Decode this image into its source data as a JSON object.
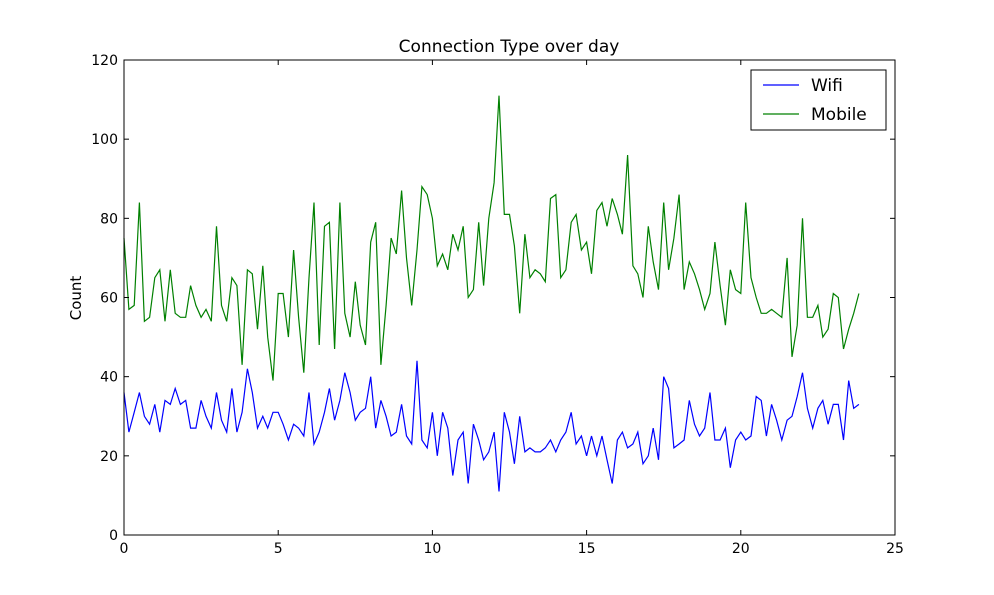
{
  "chart_data": {
    "type": "line",
    "title": "Connection Type over day",
    "xlabel": "",
    "ylabel": "Count",
    "xlim": [
      0,
      25
    ],
    "ylim": [
      0,
      120
    ],
    "xticks": [
      0,
      5,
      10,
      15,
      20,
      25
    ],
    "yticks": [
      0,
      20,
      40,
      60,
      80,
      100,
      120
    ],
    "grid": false,
    "legend_position": "top-right",
    "x": [
      0.0,
      0.16,
      0.33,
      0.5,
      0.66,
      0.83,
      1.0,
      1.16,
      1.33,
      1.5,
      1.66,
      1.83,
      2.0,
      2.16,
      2.33,
      2.5,
      2.66,
      2.83,
      3.0,
      3.16,
      3.33,
      3.5,
      3.66,
      3.83,
      4.0,
      4.16,
      4.33,
      4.5,
      4.66,
      4.83,
      5.0,
      5.16,
      5.33,
      5.5,
      5.66,
      5.83,
      6.0,
      6.16,
      6.33,
      6.5,
      6.66,
      6.83,
      7.0,
      7.16,
      7.33,
      7.5,
      7.66,
      7.83,
      8.0,
      8.16,
      8.33,
      8.5,
      8.66,
      8.83,
      9.0,
      9.16,
      9.33,
      9.5,
      9.66,
      9.83,
      10.0,
      10.16,
      10.33,
      10.5,
      10.66,
      10.83,
      11.0,
      11.16,
      11.33,
      11.5,
      11.66,
      11.83,
      12.0,
      12.16,
      12.33,
      12.5,
      12.66,
      12.83,
      13.0,
      13.16,
      13.33,
      13.5,
      13.66,
      13.83,
      14.0,
      14.16,
      14.33,
      14.5,
      14.66,
      14.83,
      15.0,
      15.16,
      15.33,
      15.5,
      15.66,
      15.83,
      16.0,
      16.16,
      16.33,
      16.5,
      16.66,
      16.83,
      17.0,
      17.16,
      17.33,
      17.5,
      17.66,
      17.83,
      18.0,
      18.16,
      18.33,
      18.5,
      18.66,
      18.83,
      19.0,
      19.16,
      19.33,
      19.5,
      19.66,
      19.83,
      20.0,
      20.16,
      20.33,
      20.5,
      20.66,
      20.83,
      21.0,
      21.16,
      21.33,
      21.5,
      21.66,
      21.83,
      22.0,
      22.16,
      22.33,
      22.5,
      22.66,
      22.83,
      23.0,
      23.16,
      23.33,
      23.5,
      23.66,
      23.83
    ],
    "series": [
      {
        "name": "Wifi",
        "color": "#0000ff",
        "values": [
          36,
          26,
          31,
          36,
          30,
          28,
          33,
          26,
          34,
          33,
          37,
          33,
          34,
          27,
          27,
          34,
          30,
          27,
          36,
          29,
          26,
          37,
          26,
          31,
          42,
          36,
          27,
          30,
          27,
          31,
          31,
          28,
          24,
          28,
          27,
          25,
          36,
          23,
          26,
          31,
          37,
          29,
          34,
          41,
          36,
          29,
          31,
          32,
          40,
          27,
          34,
          30,
          25,
          26,
          33,
          25,
          23,
          44,
          24,
          22,
          31,
          20,
          31,
          27,
          15,
          24,
          26,
          13,
          28,
          24,
          19,
          21,
          26,
          11,
          31,
          26,
          18,
          30,
          21,
          22,
          21,
          21,
          22,
          24,
          21,
          24,
          26,
          31,
          23,
          25,
          20,
          25,
          20,
          25,
          19,
          13,
          24,
          26,
          22,
          23,
          26,
          18,
          20,
          27,
          19,
          40,
          37,
          22,
          23,
          24,
          34,
          28,
          25,
          27,
          36,
          24,
          24,
          27,
          17,
          24,
          26,
          24,
          25,
          35,
          34,
          25,
          33,
          29,
          24,
          29,
          30,
          35,
          41,
          32,
          27,
          32,
          34,
          28,
          33,
          33,
          24,
          39,
          32,
          33
        ]
      },
      {
        "name": "Mobile",
        "color": "#008000",
        "values": [
          75,
          57,
          58,
          84,
          54,
          55,
          65,
          67,
          54,
          67,
          56,
          55,
          55,
          63,
          58,
          55,
          57,
          54,
          78,
          58,
          54,
          65,
          63,
          43,
          67,
          66,
          52,
          68,
          50,
          39,
          61,
          61,
          50,
          72,
          55,
          41,
          65,
          84,
          48,
          78,
          79,
          47,
          84,
          56,
          50,
          64,
          53,
          48,
          74,
          79,
          43,
          58,
          75,
          71,
          87,
          70,
          58,
          72,
          88,
          86,
          80,
          68,
          71,
          67,
          76,
          72,
          78,
          60,
          62,
          79,
          63,
          80,
          89,
          111,
          81,
          81,
          73,
          56,
          76,
          65,
          67,
          66,
          64,
          85,
          86,
          65,
          67,
          79,
          81,
          72,
          74,
          66,
          82,
          84,
          78,
          85,
          81,
          76,
          96,
          68,
          66,
          60,
          78,
          69,
          62,
          84,
          67,
          75,
          86,
          62,
          69,
          66,
          62,
          57,
          61,
          74,
          63,
          53,
          67,
          62,
          61,
          84,
          65,
          60,
          56,
          56,
          57,
          56,
          55,
          70,
          45,
          53,
          80,
          55,
          55,
          58,
          50,
          52,
          61,
          60,
          47,
          52,
          56,
          61
        ]
      }
    ]
  }
}
